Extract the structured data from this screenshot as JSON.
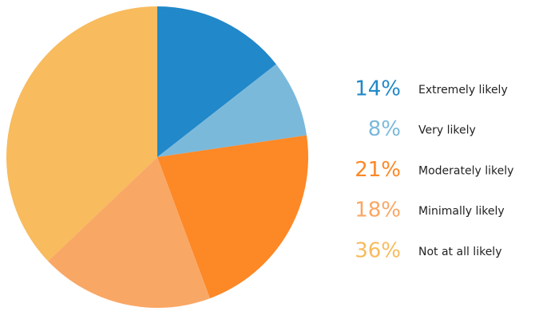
{
  "chart_data": {
    "type": "pie",
    "categories": [
      "Extremely likely",
      "Very likely",
      "Moderately likely",
      "Minimally likely",
      "Not at all likely"
    ],
    "values": [
      14,
      8,
      21,
      18,
      36
    ],
    "value_labels": [
      "14%",
      "8%",
      "21%",
      "18%",
      "36%"
    ],
    "colors": [
      "#2188c9",
      "#7bb9db",
      "#fd8826",
      "#f9a765",
      "#f8bb5d"
    ]
  }
}
